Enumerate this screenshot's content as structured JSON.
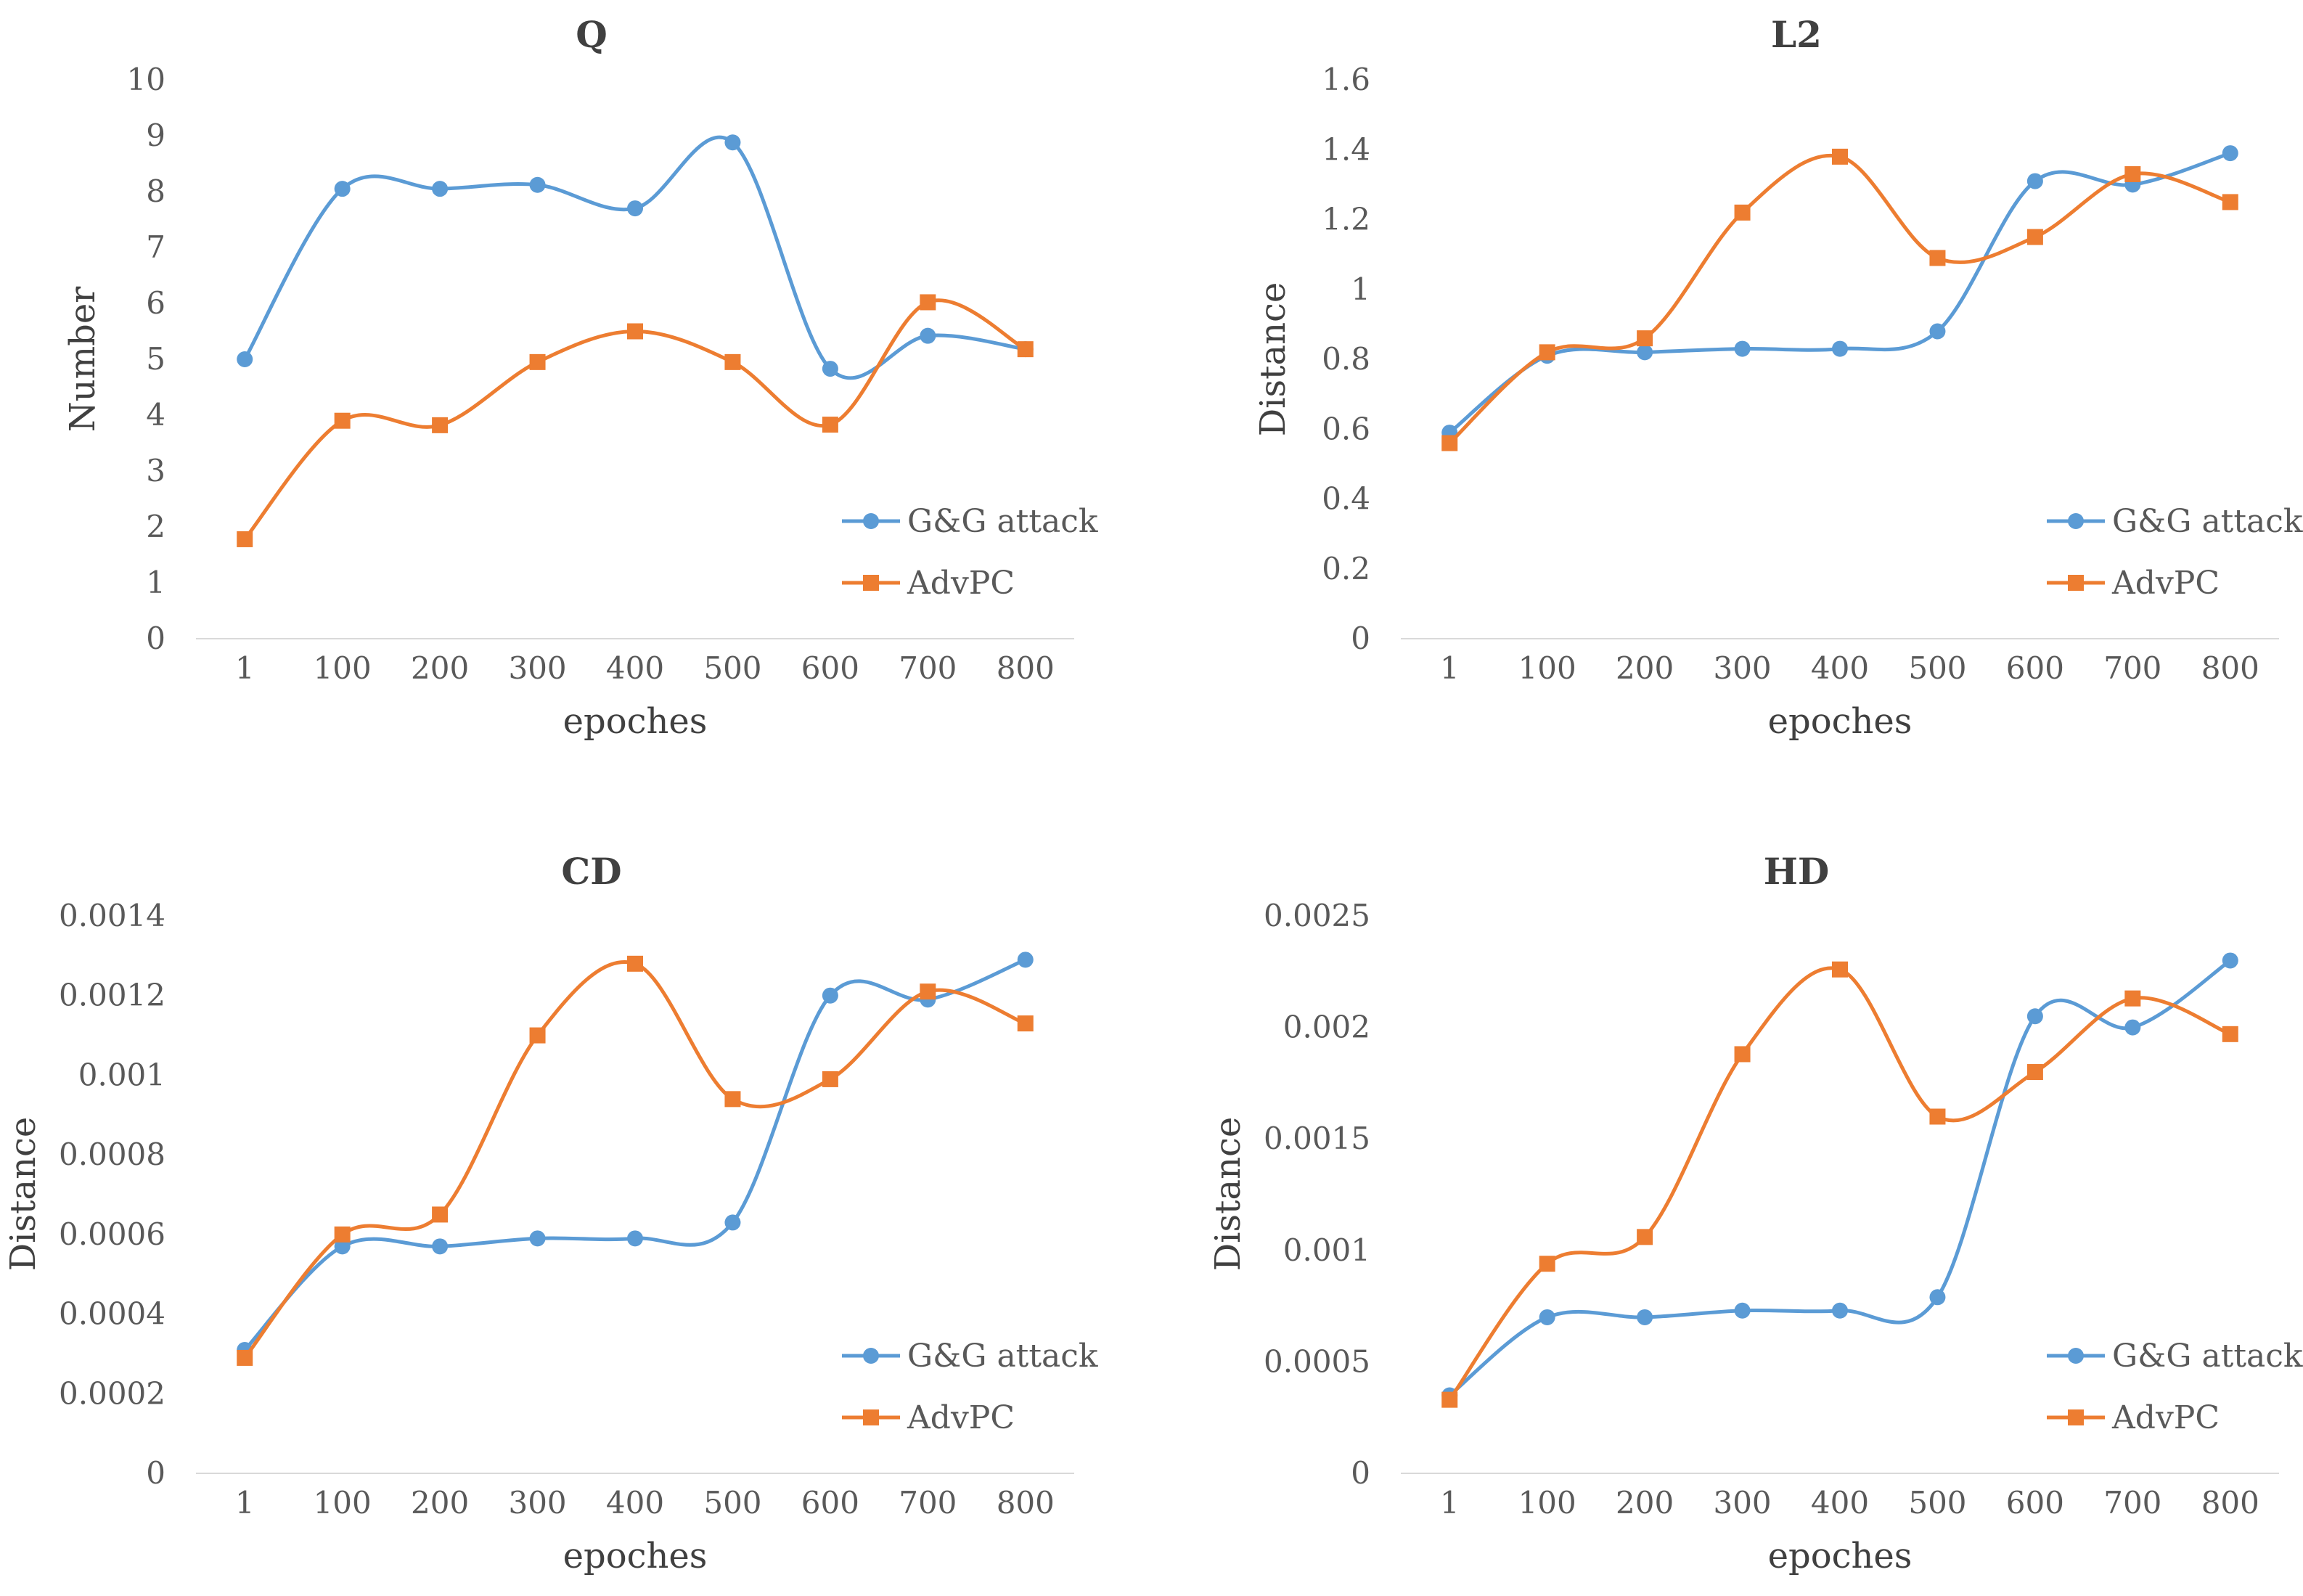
{
  "chart_data": [
    {
      "type": "line",
      "title": "Q",
      "xlabel": "epoches",
      "ylabel": "Number",
      "categories": [
        "1",
        "100",
        "200",
        "300",
        "400",
        "500",
        "600",
        "700",
        "800"
      ],
      "ylim": [
        0,
        10
      ],
      "yticks": [
        "0",
        "1",
        "2",
        "3",
        "4",
        "5",
        "6",
        "7",
        "8",
        "9",
        "10"
      ],
      "legend_position": "right",
      "series": [
        {
          "name": "G&G attack",
          "values": [
            5.0,
            8.05,
            8.05,
            8.12,
            7.7,
            8.88,
            4.83,
            5.42,
            5.18
          ]
        },
        {
          "name": "AdvPC",
          "values": [
            1.78,
            3.9,
            3.82,
            4.95,
            5.5,
            4.95,
            3.83,
            6.02,
            5.18
          ]
        }
      ]
    },
    {
      "type": "line",
      "title": "L2",
      "xlabel": "epoches",
      "ylabel": "Distance",
      "categories": [
        "1",
        "100",
        "200",
        "300",
        "400",
        "500",
        "600",
        "700",
        "800"
      ],
      "ylim": [
        0,
        1.6
      ],
      "yticks": [
        "0",
        "0.2",
        "0.4",
        "0.6",
        "0.8",
        "1",
        "1.2",
        "1.4",
        "1.6"
      ],
      "legend_position": "right",
      "series": [
        {
          "name": "G&G attack",
          "values": [
            0.59,
            0.81,
            0.82,
            0.83,
            0.83,
            0.88,
            1.31,
            1.3,
            1.39
          ]
        },
        {
          "name": "AdvPC",
          "values": [
            0.56,
            0.82,
            0.86,
            1.22,
            1.38,
            1.09,
            1.15,
            1.33,
            1.25
          ]
        }
      ]
    },
    {
      "type": "line",
      "title": "CD",
      "xlabel": "epoches",
      "ylabel": "Distance",
      "categories": [
        "1",
        "100",
        "200",
        "300",
        "400",
        "500",
        "600",
        "700",
        "800"
      ],
      "ylim": [
        0,
        0.0014
      ],
      "yticks": [
        "0",
        "0.0002",
        "0.0004",
        "0.0006",
        "0.0008",
        "0.001",
        "0.0012",
        "0.0014"
      ],
      "legend_position": "right",
      "series": [
        {
          "name": "G&G attack",
          "values": [
            0.00031,
            0.00057,
            0.00057,
            0.00059,
            0.00059,
            0.00063,
            0.0012,
            0.00119,
            0.00129
          ]
        },
        {
          "name": "AdvPC",
          "values": [
            0.00029,
            0.0006,
            0.00065,
            0.0011,
            0.00128,
            0.00094,
            0.00099,
            0.00121,
            0.00113
          ]
        }
      ]
    },
    {
      "type": "line",
      "title": "HD",
      "xlabel": "epoches",
      "ylabel": "Distance",
      "categories": [
        "1",
        "100",
        "200",
        "300",
        "400",
        "500",
        "600",
        "700",
        "800"
      ],
      "ylim": [
        0,
        0.0025
      ],
      "yticks": [
        "0",
        "0.0005",
        "0.001",
        "0.0015",
        "0.002",
        "0.0025"
      ],
      "legend_position": "right",
      "series": [
        {
          "name": "G&G attack",
          "values": [
            0.00035,
            0.0007,
            0.0007,
            0.00073,
            0.00073,
            0.00079,
            0.00205,
            0.002,
            0.0023
          ]
        },
        {
          "name": "AdvPC",
          "values": [
            0.00033,
            0.00094,
            0.00106,
            0.00188,
            0.00226,
            0.0016,
            0.0018,
            0.00213,
            0.00197
          ]
        }
      ]
    }
  ],
  "colors": {
    "series0": "#5B9BD5",
    "series1": "#ED7D31",
    "axis": "#D9D9D9"
  },
  "markers": {
    "series0": "circle-marker",
    "series1": "square-marker"
  }
}
